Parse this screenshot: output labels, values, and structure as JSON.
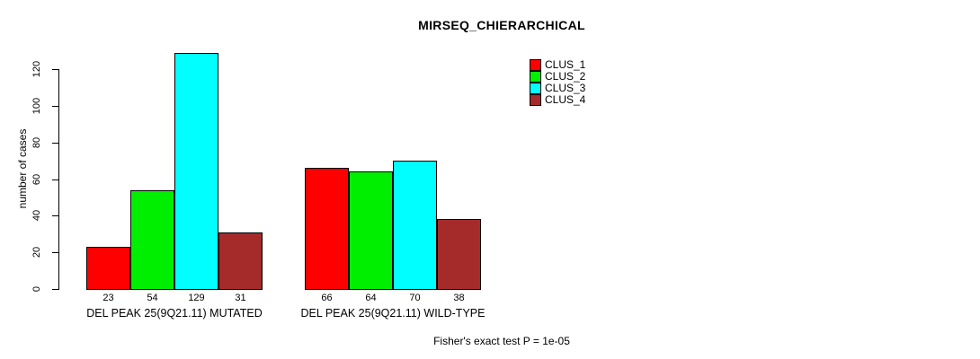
{
  "chart_data": {
    "type": "bar",
    "title": "MIRSEQ_CHIERARCHICAL",
    "ylabel": "number of cases",
    "xlabel": "",
    "ylim": [
      0,
      130
    ],
    "yticks": [
      0,
      20,
      40,
      60,
      80,
      100,
      120
    ],
    "grid": false,
    "legend_position": "top-right",
    "show_values_under_bars": true,
    "categories": [
      "DEL PEAK 25(9Q21.11) MUTATED",
      "DEL PEAK 25(9Q21.11) WILD-TYPE"
    ],
    "series": [
      {
        "name": "CLUS_1",
        "color": "#ff0000",
        "values": [
          23,
          66
        ]
      },
      {
        "name": "CLUS_2",
        "color": "#00ee00",
        "values": [
          54,
          64
        ]
      },
      {
        "name": "CLUS_3",
        "color": "#00ffff",
        "values": [
          129,
          70
        ]
      },
      {
        "name": "CLUS_4",
        "color": "#a52a2a",
        "values": [
          31,
          38
        ]
      }
    ],
    "footnote": "Fisher's exact test P = 1e-05",
    "colors": {
      "background": "#ffffff",
      "axis": "#000000",
      "bar_border": "#000000",
      "text": "#000000"
    }
  }
}
